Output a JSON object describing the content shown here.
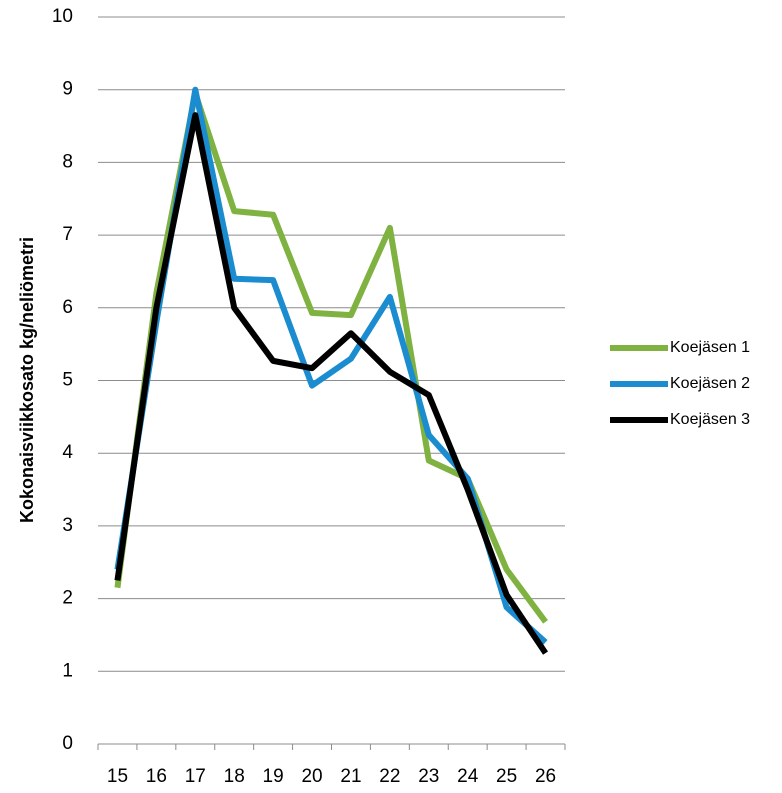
{
  "chart_data": {
    "type": "line",
    "y_label": "Kokonaisviikkosato kg/neliömetri",
    "categories": [
      "15",
      "16",
      "17",
      "18",
      "19",
      "20",
      "21",
      "22",
      "23",
      "24",
      "25",
      "26"
    ],
    "series": [
      {
        "name": "Koejäsen 1",
        "color": "#7fb241",
        "values": [
          2.15,
          6.2,
          8.95,
          7.33,
          7.28,
          5.93,
          5.9,
          7.1,
          3.9,
          3.65,
          2.4,
          1.68
        ]
      },
      {
        "name": "Koejäsen 2",
        "color": "#1a8ccf",
        "values": [
          2.4,
          5.8,
          9.0,
          6.4,
          6.38,
          4.93,
          5.3,
          6.15,
          4.25,
          3.65,
          1.88,
          1.4
        ]
      },
      {
        "name": "Koejäsen 3",
        "color": "#000000",
        "values": [
          2.25,
          6.0,
          8.65,
          6.0,
          5.27,
          5.17,
          5.65,
          5.12,
          4.8,
          3.5,
          2.05,
          1.25
        ]
      }
    ],
    "ylim": [
      0,
      10
    ],
    "yticks": [
      0,
      1,
      2,
      3,
      4,
      5,
      6,
      7,
      8,
      9,
      10
    ],
    "grid": true,
    "legend": "right"
  }
}
